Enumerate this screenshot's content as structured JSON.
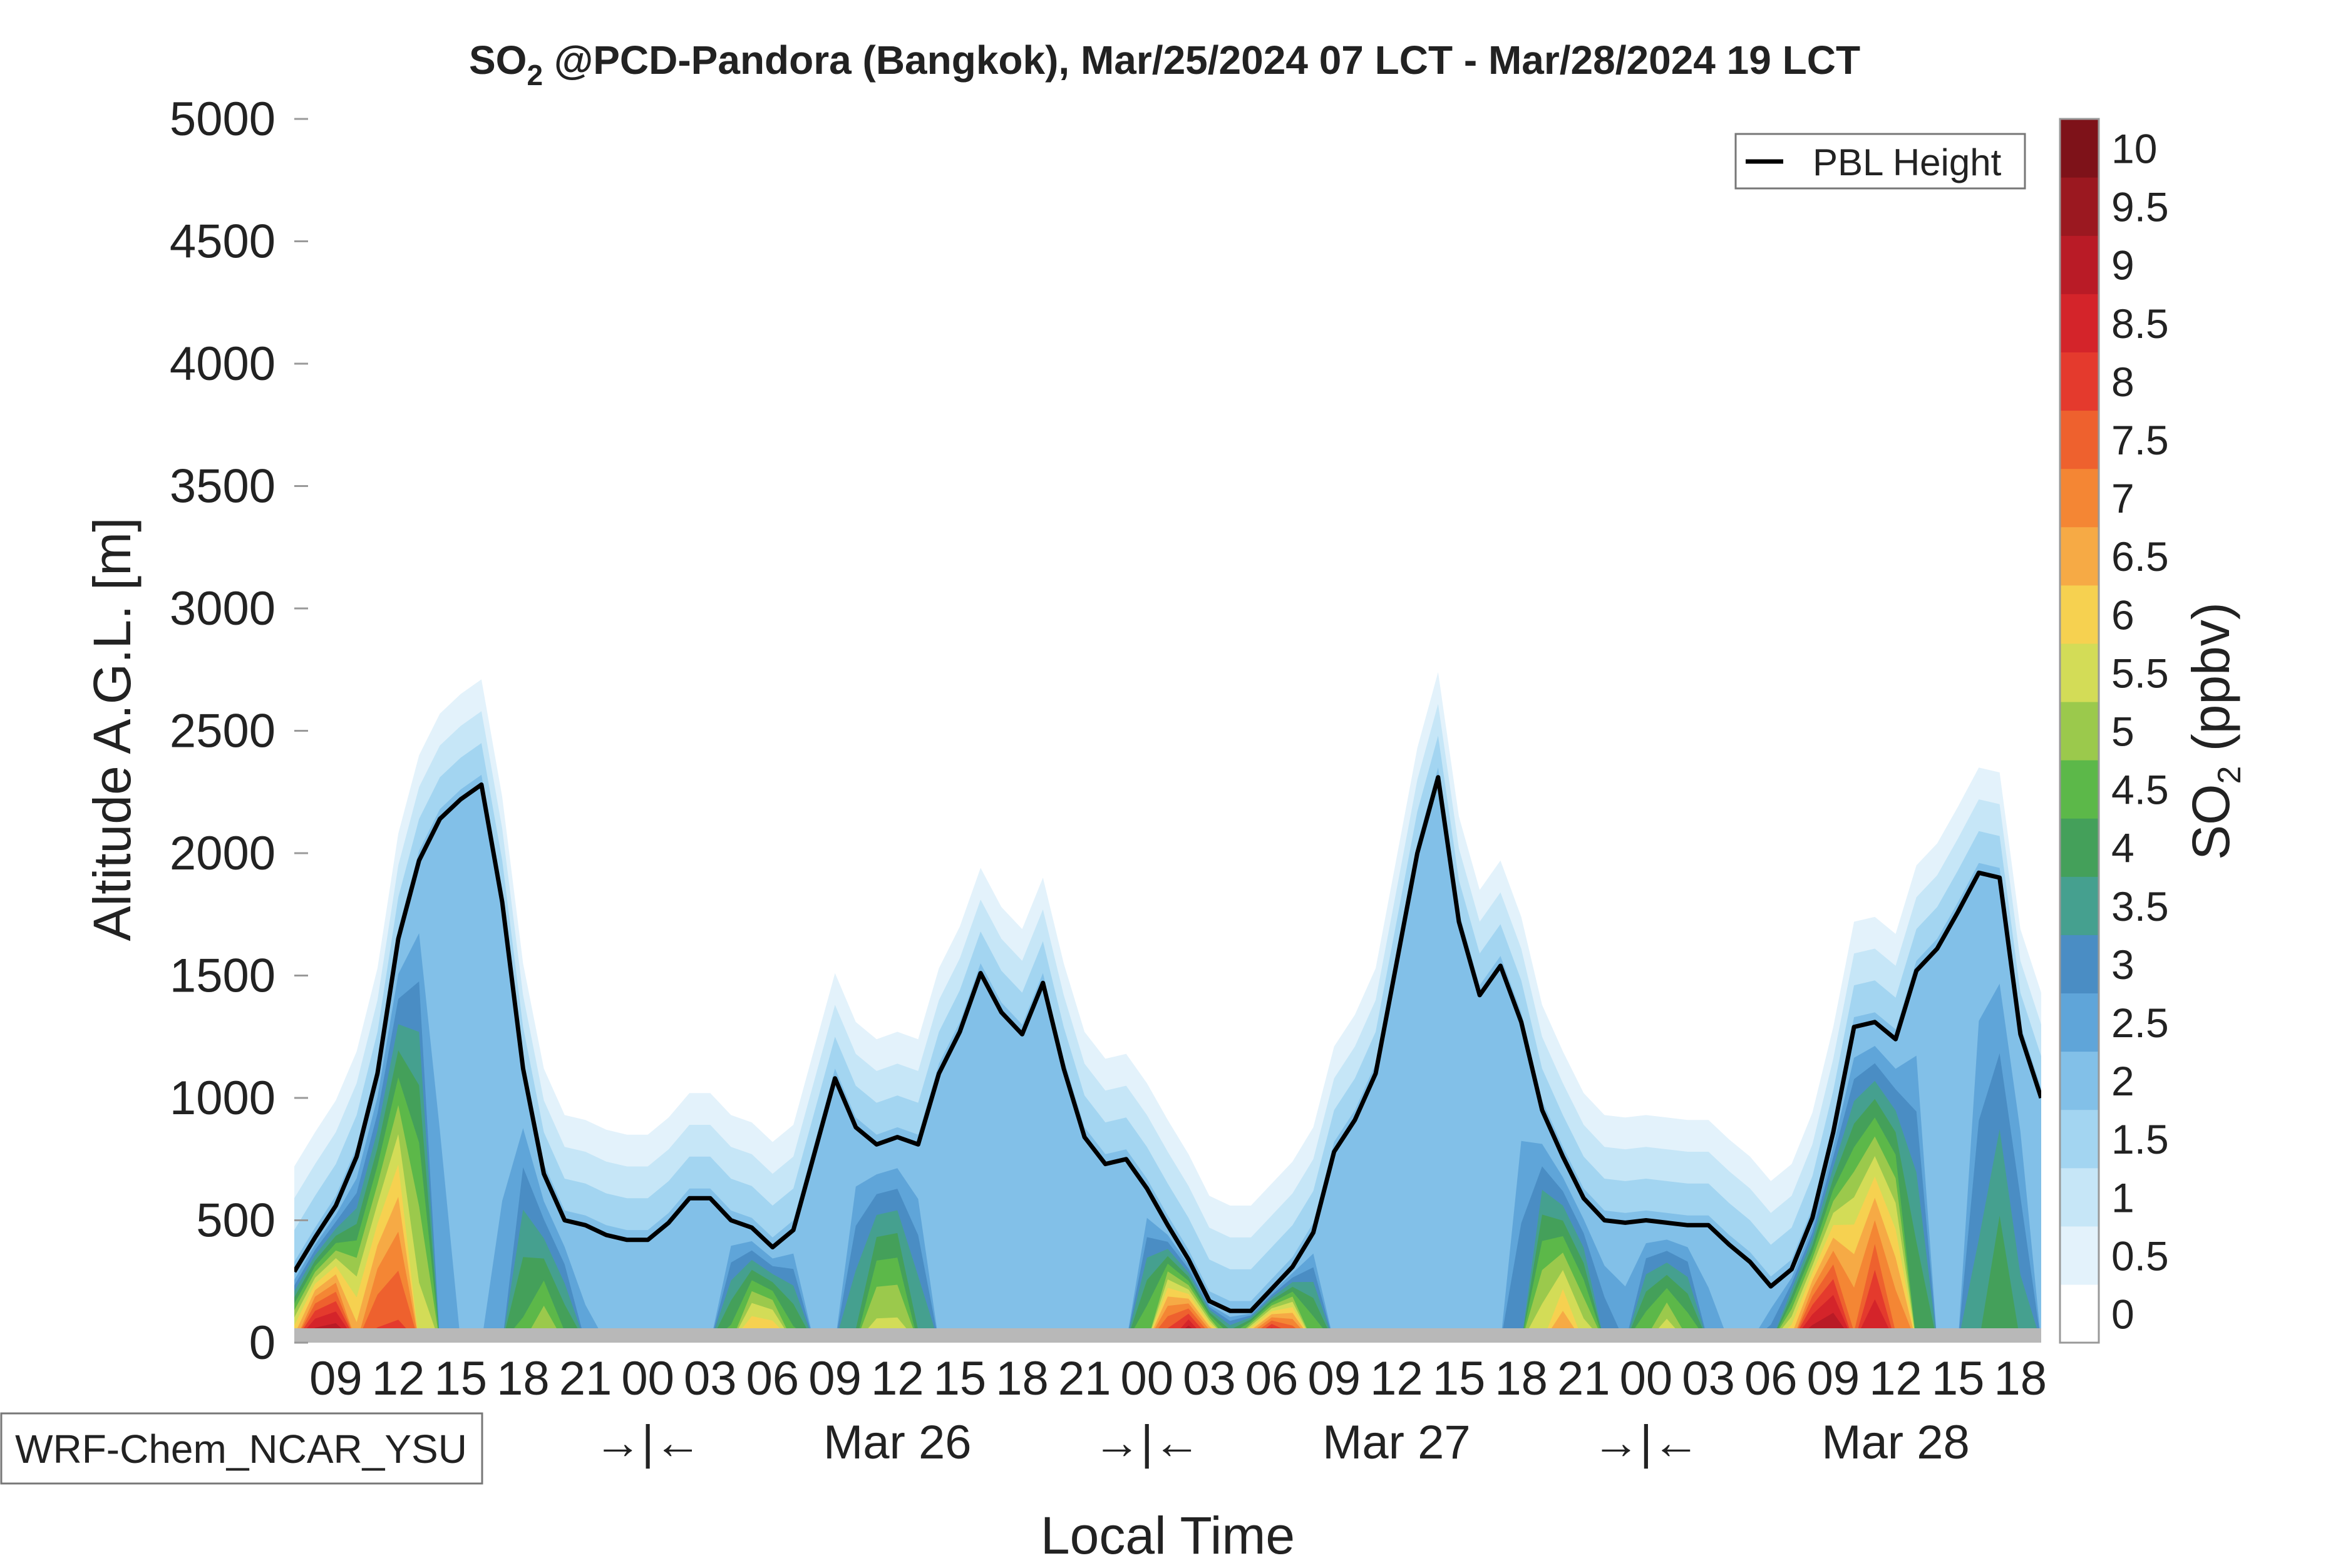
{
  "chart_data": {
    "type": "heatmap",
    "title_prefix": "SO",
    "title_sub": "2",
    "title_rest": " @PCD-Pandora (Bangkok), Mar/25/2024 07 LCT - Mar/28/2024 19 LCT",
    "xlabel": "Local Time",
    "ylabel": "Altitude A.G.L. [m]",
    "ylim": [
      0,
      5000
    ],
    "y_ticks": [
      0,
      500,
      1000,
      1500,
      2000,
      2500,
      3000,
      3500,
      4000,
      4500,
      5000
    ],
    "x_range_hours": [
      0,
      84
    ],
    "x_ticks": [
      {
        "h": 2,
        "label": "09"
      },
      {
        "h": 5,
        "label": "12"
      },
      {
        "h": 8,
        "label": "15"
      },
      {
        "h": 11,
        "label": "18"
      },
      {
        "h": 14,
        "label": "21"
      },
      {
        "h": 17,
        "label": "00"
      },
      {
        "h": 20,
        "label": "03"
      },
      {
        "h": 23,
        "label": "06"
      },
      {
        "h": 26,
        "label": "09"
      },
      {
        "h": 29,
        "label": "12"
      },
      {
        "h": 32,
        "label": "15"
      },
      {
        "h": 35,
        "label": "18"
      },
      {
        "h": 38,
        "label": "21"
      },
      {
        "h": 41,
        "label": "00"
      },
      {
        "h": 44,
        "label": "03"
      },
      {
        "h": 47,
        "label": "06"
      },
      {
        "h": 50,
        "label": "09"
      },
      {
        "h": 53,
        "label": "12"
      },
      {
        "h": 56,
        "label": "15"
      },
      {
        "h": 59,
        "label": "18"
      },
      {
        "h": 62,
        "label": "21"
      },
      {
        "h": 65,
        "label": "00"
      },
      {
        "h": 68,
        "label": "03"
      },
      {
        "h": 71,
        "label": "06"
      },
      {
        "h": 74,
        "label": "09"
      },
      {
        "h": 77,
        "label": "12"
      },
      {
        "h": 80,
        "label": "15"
      },
      {
        "h": 83,
        "label": "18"
      }
    ],
    "day_labels": [
      {
        "h": 17,
        "label": "→|←"
      },
      {
        "h": 29,
        "label": "Mar 26"
      },
      {
        "h": 41,
        "label": "→|←"
      },
      {
        "h": 53,
        "label": "Mar 27"
      },
      {
        "h": 65,
        "label": "→|←"
      },
      {
        "h": 77,
        "label": "Mar 28"
      }
    ],
    "colorbar": {
      "label_prefix": "SO",
      "label_sub": "2",
      "label_rest": " (ppbv)",
      "levels": [
        0,
        0.5,
        1,
        1.5,
        2,
        2.5,
        3,
        3.5,
        4,
        4.5,
        5,
        5.5,
        6,
        6.5,
        7,
        7.5,
        8,
        8.5,
        9,
        9.5,
        10
      ],
      "tick_labels": [
        "0",
        "0.5",
        "1",
        "1.5",
        "2",
        "2.5",
        "3",
        "3.5",
        "4",
        "4.5",
        "5",
        "5.5",
        "6",
        "6.5",
        "7",
        "7.5",
        "8",
        "8.5",
        "9",
        "9.5",
        "10"
      ],
      "colors": [
        "#ffffff",
        "#e3f2fb",
        "#c6e6f7",
        "#a3d5f1",
        "#82c0e8",
        "#5fa5d9",
        "#4a8dc4",
        "#45a08f",
        "#44a05a",
        "#5cb849",
        "#9bc94c",
        "#d3dc57",
        "#f6d150",
        "#f6aa45",
        "#f48634",
        "#ee612e",
        "#e43a2d",
        "#d4242a",
        "#b91b26",
        "#9b1820",
        "#7e1219"
      ]
    },
    "legend": {
      "entries": [
        "PBL Height"
      ],
      "placement": "top-right"
    },
    "model_label": "WRF-Chem_NCAR_YSU",
    "series": [
      {
        "name": "PBL Height",
        "x": [
          0,
          1,
          2,
          3,
          4,
          5,
          6,
          7,
          8,
          9,
          10,
          11,
          12,
          13,
          14,
          15,
          16,
          17,
          18,
          19,
          20,
          21,
          22,
          23,
          24,
          25,
          26,
          27,
          28,
          29,
          30,
          31,
          32,
          33,
          34,
          35,
          36,
          37,
          38,
          39,
          40,
          41,
          42,
          43,
          44,
          45,
          46,
          47,
          48,
          49,
          50,
          51,
          52,
          53,
          54,
          55,
          56,
          57,
          58,
          59,
          60,
          61,
          62,
          63,
          64,
          65,
          66,
          67,
          68,
          69,
          70,
          71,
          72,
          73,
          74,
          75,
          76,
          77,
          78,
          79,
          80,
          81,
          82,
          83,
          84
        ],
        "values": [
          290,
          430,
          560,
          760,
          1100,
          1650,
          1970,
          2140,
          2220,
          2280,
          1800,
          1120,
          690,
          500,
          480,
          440,
          420,
          420,
          490,
          590,
          590,
          500,
          470,
          390,
          460,
          770,
          1080,
          880,
          810,
          840,
          810,
          1100,
          1270,
          1510,
          1350,
          1260,
          1470,
          1120,
          840,
          730,
          750,
          630,
          480,
          340,
          170,
          130,
          130,
          220,
          310,
          450,
          780,
          910,
          1100,
          1550,
          2000,
          2310,
          1720,
          1420,
          1540,
          1310,
          950,
          760,
          590,
          500,
          490,
          500,
          490,
          480,
          480,
          400,
          330,
          230,
          300,
          510,
          860,
          1290,
          1310,
          1240,
          1520,
          1610,
          1760,
          1920,
          1900,
          1260,
          1000
        ]
      }
    ],
    "concentration_field": {
      "note_units": "ppbv",
      "surface_peaks": [
        {
          "h": 1.5,
          "value": 10
        },
        {
          "h": 4.5,
          "value": 8.5
        },
        {
          "h": 12,
          "value": 5.5
        },
        {
          "h": 22.5,
          "value": 7
        },
        {
          "h": 28.5,
          "value": 6
        },
        {
          "h": 43,
          "value": 10
        },
        {
          "h": 47,
          "value": 10
        },
        {
          "h": 61,
          "value": 7
        },
        {
          "h": 66,
          "value": 6
        },
        {
          "h": 73.5,
          "value": 10
        },
        {
          "h": 76,
          "value": 9
        },
        {
          "h": 82,
          "value": 4.5
        }
      ]
    }
  }
}
